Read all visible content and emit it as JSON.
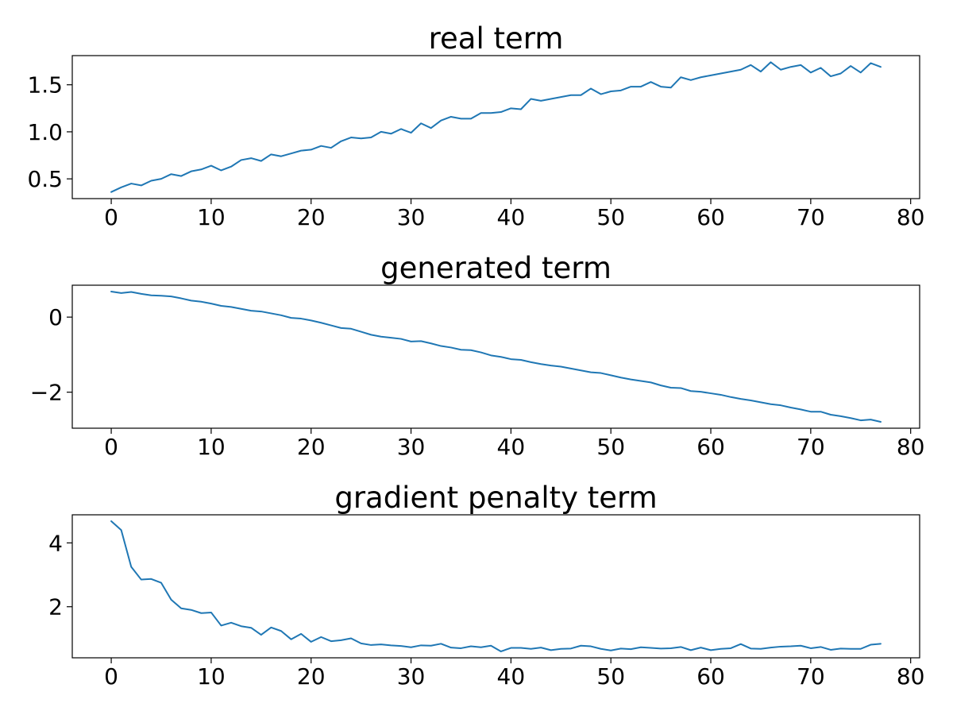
{
  "chart_data": [
    {
      "type": "line",
      "title": "real term",
      "xlabel": "",
      "ylabel": "",
      "xlim": [
        -3.9,
        80.9
      ],
      "ylim": [
        0.29,
        1.81
      ],
      "xticks": [
        0,
        10,
        20,
        30,
        40,
        50,
        60,
        70,
        80
      ],
      "yticks": [
        0.5,
        1.0,
        1.5
      ],
      "yticklabels": [
        "0.5",
        "1.0",
        "1.5"
      ],
      "grid": false,
      "color": "#1f77b4",
      "series": [
        {
          "x": [
            0,
            1,
            2,
            3,
            4,
            5,
            6,
            7,
            8,
            9,
            10,
            11,
            12,
            13,
            14,
            15,
            16,
            17,
            18,
            19,
            20,
            21,
            22,
            23,
            24,
            25,
            26,
            27,
            28,
            29,
            30,
            31,
            32,
            33,
            34,
            35,
            36,
            37,
            38,
            39,
            40,
            41,
            42,
            43,
            44,
            45,
            46,
            47,
            48,
            49,
            50,
            51,
            52,
            53,
            54,
            55,
            56,
            57,
            58,
            59,
            60,
            61,
            62,
            63,
            64,
            65,
            66,
            67,
            68,
            69,
            70,
            71,
            72,
            73,
            74,
            75,
            76,
            77
          ],
          "values": [
            0.36,
            0.41,
            0.45,
            0.43,
            0.48,
            0.5,
            0.55,
            0.53,
            0.58,
            0.6,
            0.64,
            0.59,
            0.63,
            0.7,
            0.72,
            0.69,
            0.76,
            0.74,
            0.77,
            0.8,
            0.81,
            0.85,
            0.83,
            0.9,
            0.94,
            0.93,
            0.94,
            1.0,
            0.98,
            1.03,
            0.99,
            1.09,
            1.04,
            1.12,
            1.16,
            1.14,
            1.14,
            1.2,
            1.2,
            1.21,
            1.25,
            1.24,
            1.35,
            1.33,
            1.35,
            1.37,
            1.39,
            1.39,
            1.46,
            1.4,
            1.43,
            1.44,
            1.48,
            1.48,
            1.53,
            1.48,
            1.47,
            1.58,
            1.55,
            1.58,
            1.6,
            1.62,
            1.64,
            1.66,
            1.71,
            1.64,
            1.74,
            1.66,
            1.69,
            1.71,
            1.63,
            1.68,
            1.59,
            1.62,
            1.7,
            1.63,
            1.73,
            1.69
          ]
        }
      ]
    },
    {
      "type": "line",
      "title": "generated term",
      "xlabel": "",
      "ylabel": "",
      "xlim": [
        -3.9,
        80.9
      ],
      "ylim": [
        -2.96,
        0.85
      ],
      "xticks": [
        0,
        10,
        20,
        30,
        40,
        50,
        60,
        70,
        80
      ],
      "yticks": [
        0,
        -2
      ],
      "yticklabels": [
        "0",
        "−2"
      ],
      "grid": false,
      "color": "#1f77b4",
      "series": [
        {
          "x": [
            0,
            1,
            2,
            3,
            4,
            5,
            6,
            7,
            8,
            9,
            10,
            11,
            12,
            13,
            14,
            15,
            16,
            17,
            18,
            19,
            20,
            21,
            22,
            23,
            24,
            25,
            26,
            27,
            28,
            29,
            30,
            31,
            32,
            33,
            34,
            35,
            36,
            37,
            38,
            39,
            40,
            41,
            42,
            43,
            44,
            45,
            46,
            47,
            48,
            49,
            50,
            51,
            52,
            53,
            54,
            55,
            56,
            57,
            58,
            59,
            60,
            61,
            62,
            63,
            64,
            65,
            66,
            67,
            68,
            69,
            70,
            71,
            72,
            73,
            74,
            75,
            76,
            77
          ],
          "values": [
            0.68,
            0.64,
            0.67,
            0.62,
            0.58,
            0.57,
            0.55,
            0.5,
            0.44,
            0.41,
            0.36,
            0.3,
            0.27,
            0.22,
            0.17,
            0.15,
            0.1,
            0.05,
            -0.02,
            -0.04,
            -0.09,
            -0.15,
            -0.22,
            -0.29,
            -0.31,
            -0.39,
            -0.47,
            -0.52,
            -0.55,
            -0.58,
            -0.65,
            -0.64,
            -0.7,
            -0.77,
            -0.81,
            -0.87,
            -0.88,
            -0.94,
            -1.02,
            -1.06,
            -1.12,
            -1.14,
            -1.2,
            -1.25,
            -1.29,
            -1.32,
            -1.37,
            -1.42,
            -1.47,
            -1.49,
            -1.55,
            -1.61,
            -1.66,
            -1.7,
            -1.74,
            -1.82,
            -1.88,
            -1.89,
            -1.97,
            -1.99,
            -2.03,
            -2.07,
            -2.13,
            -2.18,
            -2.22,
            -2.27,
            -2.32,
            -2.35,
            -2.41,
            -2.46,
            -2.52,
            -2.52,
            -2.6,
            -2.64,
            -2.69,
            -2.75,
            -2.73,
            -2.79
          ]
        }
      ]
    },
    {
      "type": "line",
      "title": "gradient penalty term",
      "xlabel": "",
      "ylabel": "",
      "xlim": [
        -3.9,
        80.9
      ],
      "ylim": [
        0.4,
        4.88
      ],
      "xticks": [
        0,
        10,
        20,
        30,
        40,
        50,
        60,
        70,
        80
      ],
      "yticks": [
        2,
        4
      ],
      "yticklabels": [
        "2",
        "4"
      ],
      "grid": false,
      "color": "#1f77b4",
      "series": [
        {
          "x": [
            0,
            1,
            2,
            3,
            4,
            5,
            6,
            7,
            8,
            9,
            10,
            11,
            12,
            13,
            14,
            15,
            16,
            17,
            18,
            19,
            20,
            21,
            22,
            23,
            24,
            25,
            26,
            27,
            28,
            29,
            30,
            31,
            32,
            33,
            34,
            35,
            36,
            37,
            38,
            39,
            40,
            41,
            42,
            43,
            44,
            45,
            46,
            47,
            48,
            49,
            50,
            51,
            52,
            53,
            54,
            55,
            56,
            57,
            58,
            59,
            60,
            61,
            62,
            63,
            64,
            65,
            66,
            67,
            68,
            69,
            70,
            71,
            72,
            73,
            74,
            75,
            76,
            77
          ],
          "values": [
            4.68,
            4.4,
            3.25,
            2.85,
            2.87,
            2.75,
            2.22,
            1.95,
            1.9,
            1.8,
            1.82,
            1.41,
            1.5,
            1.39,
            1.34,
            1.12,
            1.35,
            1.24,
            0.98,
            1.15,
            0.9,
            1.05,
            0.92,
            0.95,
            1.01,
            0.85,
            0.8,
            0.82,
            0.79,
            0.77,
            0.73,
            0.79,
            0.78,
            0.84,
            0.72,
            0.7,
            0.76,
            0.73,
            0.78,
            0.6,
            0.71,
            0.71,
            0.68,
            0.72,
            0.64,
            0.68,
            0.69,
            0.78,
            0.76,
            0.68,
            0.63,
            0.69,
            0.67,
            0.73,
            0.71,
            0.69,
            0.7,
            0.74,
            0.64,
            0.72,
            0.64,
            0.68,
            0.7,
            0.83,
            0.69,
            0.68,
            0.72,
            0.75,
            0.76,
            0.78,
            0.7,
            0.74,
            0.65,
            0.69,
            0.68,
            0.68,
            0.81,
            0.84
          ]
        }
      ]
    }
  ]
}
